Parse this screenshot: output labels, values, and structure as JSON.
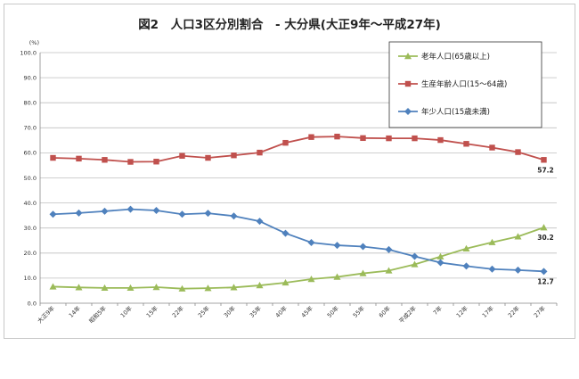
{
  "chart_data": {
    "type": "line",
    "title": "図2　人口3区分別割合　- 大分県(大正9年～平成27年)",
    "ylabel_unit": "(%)",
    "ylim": [
      0,
      100
    ],
    "yticks": [
      "0.0",
      "10.0",
      "20.0",
      "30.0",
      "40.0",
      "50.0",
      "60.0",
      "70.0",
      "80.0",
      "90.0",
      "100.0"
    ],
    "grid": true,
    "legend_position": "top-right",
    "categories": [
      "大正9年",
      "14年",
      "昭和5年",
      "10年",
      "15年",
      "22年",
      "25年",
      "30年",
      "35年",
      "40年",
      "45年",
      "50年",
      "55年",
      "60年",
      "平成2年",
      "7年",
      "12年",
      "17年",
      "22年",
      "27年"
    ],
    "series": [
      {
        "name": "老年人口(65歳以上)",
        "color": "#9bbb59",
        "marker": "triangle",
        "values": [
          6.6,
          6.3,
          6.1,
          6.1,
          6.4,
          5.8,
          6.0,
          6.3,
          7.1,
          8.2,
          9.6,
          10.5,
          11.9,
          13.0,
          15.5,
          18.6,
          21.8,
          24.3,
          26.6,
          30.2
        ],
        "end_label": "30.2"
      },
      {
        "name": "生産年齢人口(15～64歳)",
        "color": "#c0504d",
        "marker": "square",
        "values": [
          58.0,
          57.7,
          57.2,
          56.4,
          56.5,
          58.8,
          58.0,
          59.0,
          60.1,
          64.0,
          66.3,
          66.5,
          65.9,
          65.8,
          65.8,
          65.1,
          63.6,
          62.1,
          60.3,
          57.2
        ],
        "end_label": "57.2"
      },
      {
        "name": "年少人口(15歳未満)",
        "color": "#4f81bd",
        "marker": "diamond",
        "values": [
          35.5,
          36.0,
          36.7,
          37.5,
          37.0,
          35.5,
          35.9,
          34.8,
          32.7,
          27.9,
          24.2,
          23.1,
          22.6,
          21.4,
          18.7,
          16.2,
          14.8,
          13.6,
          13.2,
          12.7
        ],
        "end_label": "12.7"
      }
    ],
    "legend_order": [
      0,
      1,
      2
    ]
  }
}
